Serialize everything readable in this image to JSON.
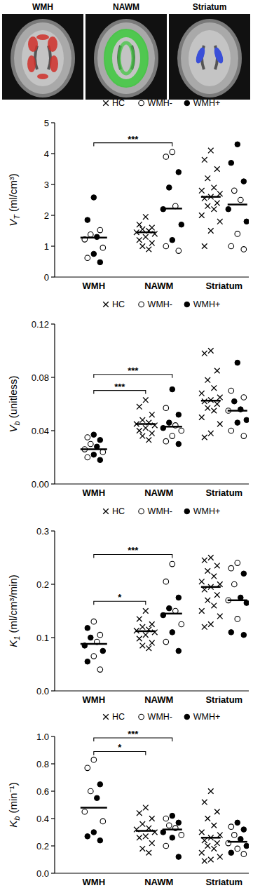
{
  "header": {
    "panels": [
      "WMH",
      "NAWM",
      "Striatum"
    ]
  },
  "chart_data": [
    {
      "type": "scatter",
      "ylabel": {
        "main": "V",
        "sub": "T",
        "unit": "(ml/cm³)"
      },
      "categories": [
        "WMH",
        "NAWM",
        "Striatum"
      ],
      "ylim": [
        0,
        5
      ],
      "yticks": [
        0,
        1,
        2,
        3,
        4,
        5
      ],
      "legend": "top",
      "series": [
        {
          "name": "HC",
          "marker": "x",
          "color": "#000000",
          "x": [
            "NAWM",
            "NAWM",
            "NAWM",
            "NAWM",
            "NAWM",
            "NAWM",
            "NAWM",
            "NAWM",
            "NAWM",
            "NAWM",
            "NAWM",
            "NAWM",
            "Striatum",
            "Striatum",
            "Striatum",
            "Striatum",
            "Striatum",
            "Striatum",
            "Striatum",
            "Striatum",
            "Striatum",
            "Striatum",
            "Striatum",
            "Striatum",
            "Striatum",
            "Striatum",
            "Striatum",
            "Striatum"
          ],
          "values": [
            1.95,
            1.7,
            1.6,
            1.55,
            1.5,
            1.45,
            1.4,
            1.3,
            1.2,
            1.1,
            1.0,
            0.9,
            4.1,
            3.8,
            3.5,
            3.2,
            2.9,
            2.8,
            2.7,
            2.6,
            2.55,
            2.4,
            2.3,
            2.2,
            2.0,
            1.8,
            1.5,
            1.0
          ]
        },
        {
          "name": "WMH-",
          "marker": "open-circle",
          "color": "#000000",
          "x": [
            "WMH",
            "WMH",
            "WMH",
            "WMH",
            "WMH",
            "NAWM",
            "NAWM",
            "NAWM",
            "NAWM",
            "NAWM",
            "Striatum",
            "Striatum",
            "Striatum",
            "Striatum",
            "Striatum"
          ],
          "values": [
            1.52,
            1.38,
            1.22,
            0.95,
            0.62,
            4.05,
            3.9,
            2.3,
            1.0,
            0.85,
            2.8,
            2.5,
            1.4,
            1.0,
            0.9
          ]
        },
        {
          "name": "WMH+",
          "marker": "circle",
          "color": "#000000",
          "x": [
            "WMH",
            "WMH",
            "WMH",
            "WMH",
            "WMH",
            "NAWM",
            "NAWM",
            "NAWM",
            "NAWM",
            "NAWM",
            "Striatum",
            "Striatum",
            "Striatum",
            "Striatum",
            "Striatum"
          ],
          "values": [
            2.58,
            1.85,
            1.3,
            0.75,
            0.48,
            3.4,
            2.9,
            2.2,
            1.7,
            1.2,
            4.3,
            3.7,
            3.1,
            2.2,
            1.8
          ]
        }
      ],
      "medians": [
        {
          "x": "WMH",
          "series": [
            "WMH-",
            "WMH+"
          ],
          "value": 1.28
        },
        {
          "x": "NAWM",
          "series": [
            "HC"
          ],
          "value": 1.45
        },
        {
          "x": "NAWM",
          "series": [
            "WMH-",
            "WMH+"
          ],
          "value": 2.22
        },
        {
          "x": "Striatum",
          "series": [
            "HC"
          ],
          "value": 2.6
        },
        {
          "x": "Striatum",
          "series": [
            "WMH-",
            "WMH+"
          ],
          "value": 2.35
        }
      ],
      "brackets": [
        {
          "label": "***",
          "from": [
            "WMH",
            "WMH-",
            "WMH+"
          ],
          "to": [
            "NAWM",
            "WMH-",
            "WMH+"
          ]
        }
      ]
    },
    {
      "type": "scatter",
      "ylabel": {
        "main": "V",
        "sub": "b",
        "unit": "(unitless)"
      },
      "categories": [
        "WMH",
        "NAWM",
        "Striatum"
      ],
      "ylim": [
        0,
        0.12
      ],
      "yticks": [
        {
          "value": 0,
          "label": "0.00"
        },
        {
          "value": 0.04,
          "label": "0.04"
        },
        {
          "value": 0.08,
          "label": "0.08"
        },
        {
          "value": 0.12,
          "label": "0.12"
        }
      ],
      "legend": "top",
      "series": [
        {
          "name": "HC",
          "marker": "x",
          "color": "#000000",
          "x": [
            "NAWM",
            "NAWM",
            "NAWM",
            "NAWM",
            "NAWM",
            "NAWM",
            "NAWM",
            "NAWM",
            "NAWM",
            "NAWM",
            "NAWM",
            "NAWM",
            "Striatum",
            "Striatum",
            "Striatum",
            "Striatum",
            "Striatum",
            "Striatum",
            "Striatum",
            "Striatum",
            "Striatum",
            "Striatum",
            "Striatum",
            "Striatum",
            "Striatum",
            "Striatum",
            "Striatum",
            "Striatum"
          ],
          "values": [
            0.063,
            0.058,
            0.052,
            0.048,
            0.046,
            0.045,
            0.044,
            0.042,
            0.04,
            0.038,
            0.036,
            0.033,
            0.1,
            0.098,
            0.085,
            0.078,
            0.072,
            0.068,
            0.065,
            0.063,
            0.062,
            0.06,
            0.057,
            0.055,
            0.05,
            0.045,
            0.038,
            0.035
          ]
        },
        {
          "name": "WMH-",
          "marker": "open-circle",
          "color": "#000000",
          "x": [
            "WMH",
            "WMH",
            "WMH",
            "WMH",
            "WMH",
            "NAWM",
            "NAWM",
            "NAWM",
            "NAWM",
            "NAWM",
            "Striatum",
            "Striatum",
            "Striatum",
            "Striatum",
            "Striatum"
          ],
          "values": [
            0.035,
            0.03,
            0.026,
            0.024,
            0.02,
            0.057,
            0.044,
            0.04,
            0.036,
            0.032,
            0.07,
            0.065,
            0.055,
            0.04,
            0.036
          ]
        },
        {
          "name": "WMH+",
          "marker": "circle",
          "color": "#000000",
          "x": [
            "WMH",
            "WMH",
            "WMH",
            "WMH",
            "WMH",
            "NAWM",
            "NAWM",
            "NAWM",
            "NAWM",
            "NAWM",
            "Striatum",
            "Striatum",
            "Striatum",
            "Striatum",
            "Striatum"
          ],
          "values": [
            0.037,
            0.033,
            0.028,
            0.022,
            0.018,
            0.071,
            0.052,
            0.046,
            0.042,
            0.03,
            0.091,
            0.062,
            0.056,
            0.048,
            0.046
          ]
        }
      ],
      "medians": [
        {
          "x": "WMH",
          "series": [
            "WMH-",
            "WMH+"
          ],
          "value": 0.026
        },
        {
          "x": "NAWM",
          "series": [
            "HC"
          ],
          "value": 0.045
        },
        {
          "x": "NAWM",
          "series": [
            "WMH-",
            "WMH+"
          ],
          "value": 0.043
        },
        {
          "x": "Striatum",
          "series": [
            "HC"
          ],
          "value": 0.0625
        },
        {
          "x": "Striatum",
          "series": [
            "WMH-",
            "WMH+"
          ],
          "value": 0.055
        }
      ],
      "brackets": [
        {
          "label": "***",
          "from": [
            "WMH",
            "WMH-",
            "WMH+"
          ],
          "to": [
            "NAWM",
            "HC"
          ]
        },
        {
          "label": "***",
          "from": [
            "WMH",
            "WMH-",
            "WMH+"
          ],
          "to": [
            "NAWM",
            "WMH-",
            "WMH+"
          ]
        }
      ]
    },
    {
      "type": "scatter",
      "ylabel": {
        "main": "K",
        "sub": "1",
        "unit": "(ml/cm³/min)"
      },
      "categories": [
        "WMH",
        "NAWM",
        "Striatum"
      ],
      "ylim": [
        0,
        0.3
      ],
      "yticks": [
        {
          "value": 0,
          "label": "0.0"
        },
        0.1,
        0.2,
        0.3
      ],
      "legend": "top",
      "series": [
        {
          "name": "HC",
          "marker": "x",
          "color": "#000000",
          "x": [
            "NAWM",
            "NAWM",
            "NAWM",
            "NAWM",
            "NAWM",
            "NAWM",
            "NAWM",
            "NAWM",
            "NAWM",
            "NAWM",
            "NAWM",
            "NAWM",
            "Striatum",
            "Striatum",
            "Striatum",
            "Striatum",
            "Striatum",
            "Striatum",
            "Striatum",
            "Striatum",
            "Striatum",
            "Striatum",
            "Striatum",
            "Striatum",
            "Striatum",
            "Striatum",
            "Striatum",
            "Striatum"
          ],
          "values": [
            0.15,
            0.135,
            0.125,
            0.12,
            0.115,
            0.113,
            0.11,
            0.105,
            0.098,
            0.09,
            0.085,
            0.08,
            0.25,
            0.245,
            0.235,
            0.225,
            0.215,
            0.205,
            0.2,
            0.195,
            0.19,
            0.18,
            0.17,
            0.16,
            0.15,
            0.14,
            0.125,
            0.12
          ]
        },
        {
          "name": "WMH-",
          "marker": "open-circle",
          "color": "#000000",
          "x": [
            "WMH",
            "WMH",
            "WMH",
            "WMH",
            "WMH",
            "NAWM",
            "NAWM",
            "NAWM",
            "NAWM",
            "NAWM",
            "Striatum",
            "Striatum",
            "Striatum",
            "Striatum",
            "Striatum"
          ],
          "values": [
            0.13,
            0.105,
            0.092,
            0.065,
            0.04,
            0.238,
            0.205,
            0.15,
            0.125,
            0.092,
            0.24,
            0.23,
            0.2,
            0.17,
            0.135
          ]
        },
        {
          "name": "WMH+",
          "marker": "circle",
          "color": "#000000",
          "x": [
            "WMH",
            "WMH",
            "WMH",
            "WMH",
            "WMH",
            "NAWM",
            "NAWM",
            "NAWM",
            "NAWM",
            "NAWM",
            "Striatum",
            "Striatum",
            "Striatum",
            "Striatum",
            "Striatum"
          ],
          "values": [
            0.118,
            0.1,
            0.085,
            0.075,
            0.055,
            0.175,
            0.155,
            0.142,
            0.11,
            0.075,
            0.22,
            0.175,
            0.165,
            0.11,
            0.105
          ]
        }
      ],
      "medians": [
        {
          "x": "WMH",
          "series": [
            "WMH-",
            "WMH+"
          ],
          "value": 0.088
        },
        {
          "x": "NAWM",
          "series": [
            "HC"
          ],
          "value": 0.112
        },
        {
          "x": "NAWM",
          "series": [
            "WMH-",
            "WMH+"
          ],
          "value": 0.145
        },
        {
          "x": "Striatum",
          "series": [
            "HC"
          ],
          "value": 0.195
        },
        {
          "x": "Striatum",
          "series": [
            "WMH-",
            "WMH+"
          ],
          "value": 0.17
        }
      ],
      "brackets": [
        {
          "label": "*",
          "from": [
            "WMH",
            "WMH-",
            "WMH+"
          ],
          "to": [
            "NAWM",
            "HC"
          ]
        },
        {
          "label": "***",
          "from": [
            "WMH",
            "WMH-",
            "WMH+"
          ],
          "to": [
            "NAWM",
            "WMH-",
            "WMH+"
          ]
        }
      ]
    },
    {
      "type": "scatter",
      "ylabel": {
        "main": "K",
        "sub": "b",
        "unit": "(min⁻¹)"
      },
      "categories": [
        "WMH",
        "NAWM",
        "Striatum"
      ],
      "ylim": [
        0,
        1.0
      ],
      "yticks": [
        {
          "value": 0,
          "label": "0.0"
        },
        0.2,
        0.4,
        0.6,
        0.8,
        {
          "value": 1.0,
          "label": "1.0"
        }
      ],
      "legend": "top",
      "series": [
        {
          "name": "HC",
          "marker": "x",
          "color": "#000000",
          "x": [
            "NAWM",
            "NAWM",
            "NAWM",
            "NAWM",
            "NAWM",
            "NAWM",
            "NAWM",
            "NAWM",
            "NAWM",
            "NAWM",
            "NAWM",
            "NAWM",
            "Striatum",
            "Striatum",
            "Striatum",
            "Striatum",
            "Striatum",
            "Striatum",
            "Striatum",
            "Striatum",
            "Striatum",
            "Striatum",
            "Striatum",
            "Striatum",
            "Striatum",
            "Striatum",
            "Striatum",
            "Striatum"
          ],
          "values": [
            0.48,
            0.44,
            0.4,
            0.36,
            0.33,
            0.32,
            0.3,
            0.27,
            0.26,
            0.22,
            0.18,
            0.15,
            0.6,
            0.52,
            0.45,
            0.4,
            0.35,
            0.3,
            0.28,
            0.26,
            0.24,
            0.22,
            0.2,
            0.18,
            0.15,
            0.12,
            0.1,
            0.09
          ]
        },
        {
          "name": "WMH-",
          "marker": "open-circle",
          "color": "#000000",
          "x": [
            "WMH",
            "WMH",
            "WMH",
            "WMH",
            "WMH",
            "NAWM",
            "NAWM",
            "NAWM",
            "NAWM",
            "NAWM",
            "Striatum",
            "Striatum",
            "Striatum",
            "Striatum",
            "Striatum"
          ],
          "values": [
            0.83,
            0.77,
            0.6,
            0.45,
            0.38,
            0.4,
            0.35,
            0.33,
            0.28,
            0.2,
            0.34,
            0.28,
            0.22,
            0.18,
            0.14
          ]
        },
        {
          "name": "WMH+",
          "marker": "circle",
          "color": "#000000",
          "x": [
            "WMH",
            "WMH",
            "WMH",
            "WMH",
            "WMH",
            "NAWM",
            "NAWM",
            "NAWM",
            "NAWM",
            "NAWM",
            "Striatum",
            "Striatum",
            "Striatum",
            "Striatum",
            "Striatum"
          ],
          "values": [
            0.65,
            0.55,
            0.3,
            0.27,
            0.24,
            0.42,
            0.37,
            0.3,
            0.26,
            0.12,
            0.37,
            0.32,
            0.25,
            0.2,
            0.15
          ]
        }
      ],
      "medians": [
        {
          "x": "WMH",
          "series": [
            "WMH-",
            "WMH+"
          ],
          "value": 0.48
        },
        {
          "x": "NAWM",
          "series": [
            "HC"
          ],
          "value": 0.31
        },
        {
          "x": "NAWM",
          "series": [
            "WMH-",
            "WMH+"
          ],
          "value": 0.32
        },
        {
          "x": "Striatum",
          "series": [
            "HC"
          ],
          "value": 0.26
        },
        {
          "x": "Striatum",
          "series": [
            "WMH-",
            "WMH+"
          ],
          "value": 0.23
        }
      ],
      "brackets": [
        {
          "label": "*",
          "from": [
            "WMH",
            "WMH-",
            "WMH+"
          ],
          "to": [
            "NAWM",
            "HC"
          ]
        },
        {
          "label": "***",
          "from": [
            "WMH",
            "WMH-",
            "WMH+"
          ],
          "to": [
            "NAWM",
            "WMH-",
            "WMH+"
          ]
        }
      ]
    }
  ]
}
